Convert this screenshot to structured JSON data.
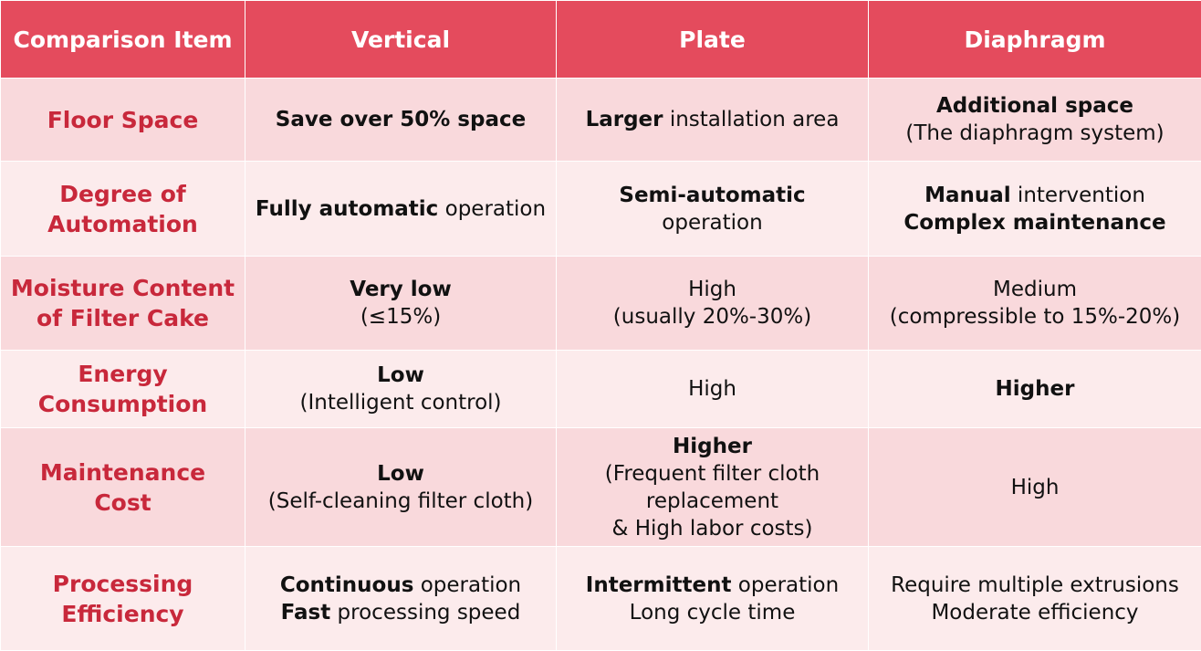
{
  "header": {
    "item": "Comparison Item",
    "vertical": "Vertical",
    "plate": "Plate",
    "diaphragm": "Diaphragm"
  },
  "rows": [
    {
      "item": "Floor Space",
      "vertical": {
        "l1b": "Save over 50% space"
      },
      "plate": {
        "l1b": "Larger",
        "l1r": " installation area"
      },
      "diaphragm": {
        "l1b": "Additional space",
        "l2": "(The diaphragm system)"
      }
    },
    {
      "item_l1": "Degree of",
      "item_l2": "Automation",
      "vertical": {
        "l1b": "Fully automatic",
        "l1r": " operation"
      },
      "plate": {
        "l1b": "Semi-automatic",
        "l2": "operation"
      },
      "diaphragm": {
        "l1b": "Manual",
        "l1r": " intervention",
        "l2b": "Complex maintenance"
      }
    },
    {
      "item_l1": "Moisture Content",
      "item_l2": "of Filter Cake",
      "vertical": {
        "l1b": "Very low",
        "l2": "(≤15%)"
      },
      "plate": {
        "l1": "High",
        "l2": "(usually 20%-30%)"
      },
      "diaphragm": {
        "l1": "Medium",
        "l2": "(compressible to 15%-20%)"
      }
    },
    {
      "item_l1": "Energy",
      "item_l2": "Consumption",
      "vertical": {
        "l1b": "Low",
        "l2": "(Intelligent control)"
      },
      "plate": {
        "l1": "High"
      },
      "diaphragm": {
        "l1b": "Higher"
      }
    },
    {
      "item_l1": "Maintenance",
      "item_l2": "Cost",
      "vertical": {
        "l1b": "Low",
        "l2": "(Self-cleaning filter cloth)"
      },
      "plate": {
        "l1b": "Higher",
        "l2": "(Frequent filter cloth",
        "l3": "replacement",
        "l4": "& High labor costs)"
      },
      "diaphragm": {
        "l1": "High"
      }
    },
    {
      "item_l1": "Processing",
      "item_l2": "Efficiency",
      "vertical": {
        "l1b": "Continuous",
        "l1r": " operation",
        "l2b": "Fast",
        "l2r": " processing speed"
      },
      "plate": {
        "l1b": "Intermittent",
        "l1r": " operation",
        "l2": "Long cycle time"
      },
      "diaphragm": {
        "l1": "Require multiple extrusions",
        "l2": "Moderate efficiency"
      }
    }
  ]
}
